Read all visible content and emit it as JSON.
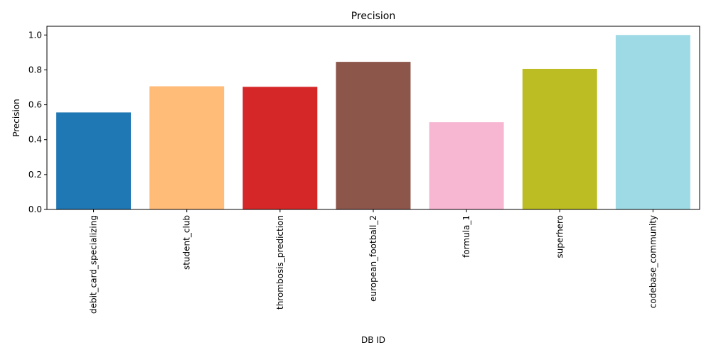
{
  "chart_data": {
    "type": "bar",
    "title": "Precision",
    "xlabel": "DB ID",
    "ylabel": "Precision",
    "ylim": [
      0,
      1.05
    ],
    "yticks": [
      0.0,
      0.2,
      0.4,
      0.6,
      0.8,
      1.0
    ],
    "ytick_labels": [
      "0.0",
      "0.2",
      "0.4",
      "0.6",
      "0.8",
      "1.0"
    ],
    "categories": [
      "debit_card_specializing",
      "student_club",
      "thrombosis_prediction",
      "european_football_2",
      "formula_1",
      "superhero",
      "codebase_community"
    ],
    "values": [
      0.556,
      0.706,
      0.703,
      0.846,
      0.5,
      0.806,
      1.0
    ],
    "colors": [
      "#1f77b4",
      "#ffbb78",
      "#d62728",
      "#8c564b",
      "#f7b6d2",
      "#bcbd22",
      "#9edae5"
    ],
    "grid": false,
    "legend": "none"
  }
}
